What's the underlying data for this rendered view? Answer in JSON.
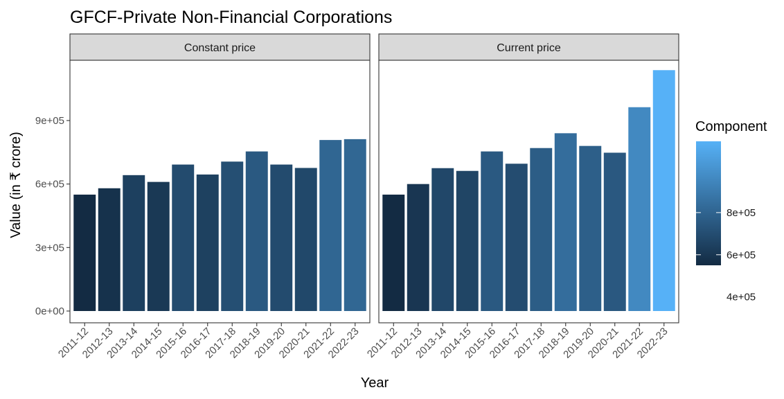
{
  "chart_data": {
    "type": "bar",
    "title": "GFCF-Private Non-Financial Corporations",
    "xlabel": "Year",
    "ylabel": "Value (in ₹ crore)",
    "categories": [
      "2011-12",
      "2012-13",
      "2013-14",
      "2014-15",
      "2015-16",
      "2016-17",
      "2017-18",
      "2018-19",
      "2019-20",
      "2020-21",
      "2021-22",
      "2022-23"
    ],
    "yticks": [
      "0e+00",
      "3e+05",
      "6e+05",
      "9e+05"
    ],
    "ytick_values": [
      0,
      300000,
      600000,
      900000
    ],
    "ylim": [
      0,
      1180000
    ],
    "facets": [
      {
        "label": "Constant price",
        "values": [
          550000,
          580000,
          642000,
          610000,
          692000,
          645000,
          706000,
          754000,
          692000,
          676000,
          808000,
          812000
        ]
      },
      {
        "label": "Current price",
        "values": [
          550000,
          600000,
          675000,
          662000,
          754000,
          696000,
          770000,
          840000,
          780000,
          748000,
          963000,
          1138000
        ]
      }
    ],
    "legend": {
      "title": "Component",
      "position": "right",
      "range": [
        550000,
        1138000
      ],
      "ticks": [
        "4e+05",
        "6e+05",
        "8e+05"
      ],
      "tick_values": [
        400000,
        600000,
        800000
      ],
      "color_low": "#132b43",
      "color_high": "#56b1f7"
    },
    "grid": false
  }
}
